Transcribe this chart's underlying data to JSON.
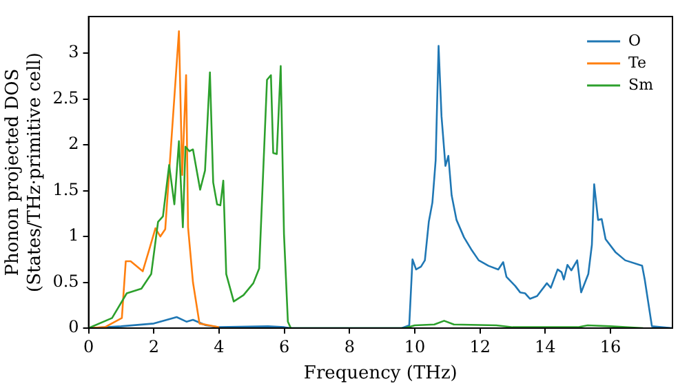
{
  "chart_data": {
    "type": "line",
    "xlabel": "Frequency (THz)",
    "ylabel": "Phonon projected DOS\n(States/THz·primitive cell)",
    "xlim": [
      0,
      17.9
    ],
    "ylim": [
      0,
      3.4
    ],
    "xticks": [
      0,
      2,
      4,
      6,
      8,
      10,
      12,
      14,
      16
    ],
    "yticks": [
      0,
      0.5,
      1,
      1.5,
      2,
      2.5,
      3
    ],
    "legend": "top right",
    "grid": false,
    "marker": "none",
    "line_style": "solid",
    "series": [
      {
        "name": "O",
        "color": "#1f77b4",
        "x": [
          0,
          1,
          2,
          2.4,
          2.7,
          3.0,
          3.2,
          3.6,
          4,
          5.5,
          6,
          6.2,
          9.6,
          9.83,
          9.93,
          10.04,
          10.19,
          10.31,
          10.43,
          10.54,
          10.64,
          10.73,
          10.82,
          10.94,
          11.03,
          11.13,
          11.28,
          11.51,
          11.73,
          11.96,
          12.26,
          12.56,
          12.71,
          12.81,
          13.08,
          13.23,
          13.38,
          13.53,
          13.75,
          14.05,
          14.17,
          14.38,
          14.5,
          14.57,
          14.68,
          14.8,
          14.98,
          15.1,
          15.32,
          15.43,
          15.5,
          15.62,
          15.73,
          15.85,
          16.15,
          16.45,
          16.97,
          17.05,
          17.27,
          17.9
        ],
        "values": [
          0,
          0.02,
          0.05,
          0.09,
          0.12,
          0.07,
          0.09,
          0.03,
          0.01,
          0.02,
          0.01,
          0,
          0,
          0.03,
          0.75,
          0.64,
          0.67,
          0.74,
          1.16,
          1.37,
          1.83,
          3.08,
          2.31,
          1.77,
          1.88,
          1.45,
          1.18,
          0.99,
          0.86,
          0.74,
          0.68,
          0.64,
          0.72,
          0.56,
          0.46,
          0.39,
          0.38,
          0.32,
          0.35,
          0.49,
          0.44,
          0.64,
          0.61,
          0.53,
          0.69,
          0.63,
          0.74,
          0.39,
          0.59,
          0.91,
          1.57,
          1.18,
          1.19,
          0.97,
          0.83,
          0.74,
          0.68,
          0.53,
          0.02,
          0
        ]
      },
      {
        "name": "Te",
        "color": "#ff7f0e",
        "x": [
          0,
          0.5,
          1.02,
          1.14,
          1.29,
          1.66,
          1.87,
          2.05,
          2.2,
          2.35,
          2.77,
          2.87,
          2.99,
          3.05,
          3.2,
          3.4,
          4
        ],
        "values": [
          0,
          0.01,
          0.11,
          0.73,
          0.73,
          0.62,
          0.87,
          1.09,
          1.0,
          1.08,
          3.24,
          1.67,
          2.76,
          1.1,
          0.5,
          0.05,
          0.01
        ]
      },
      {
        "name": "Sm",
        "color": "#2ca02c",
        "x": [
          0,
          0.72,
          1.17,
          1.62,
          1.92,
          2.13,
          2.28,
          2.47,
          2.63,
          2.77,
          2.89,
          2.97,
          3.09,
          3.2,
          3.42,
          3.57,
          3.72,
          3.82,
          3.94,
          4.04,
          4.13,
          4.22,
          4.45,
          4.75,
          5.05,
          5.23,
          5.47,
          5.59,
          5.66,
          5.77,
          5.89,
          5.99,
          6.11,
          6.2,
          9.7,
          10,
          10.6,
          10.9,
          11.2,
          12.5,
          13,
          15,
          15.3,
          16,
          17
        ],
        "values": [
          0,
          0.11,
          0.38,
          0.43,
          0.59,
          1.16,
          1.22,
          1.78,
          1.35,
          2.04,
          1.1,
          1.98,
          1.93,
          1.95,
          1.51,
          1.72,
          2.79,
          1.59,
          1.35,
          1.34,
          1.61,
          0.59,
          0.29,
          0.36,
          0.49,
          0.65,
          2.71,
          2.76,
          1.91,
          1.9,
          2.86,
          1.03,
          0.07,
          0,
          0,
          0.03,
          0.04,
          0.08,
          0.04,
          0.03,
          0.01,
          0.01,
          0.03,
          0.02,
          0
        ]
      }
    ]
  }
}
